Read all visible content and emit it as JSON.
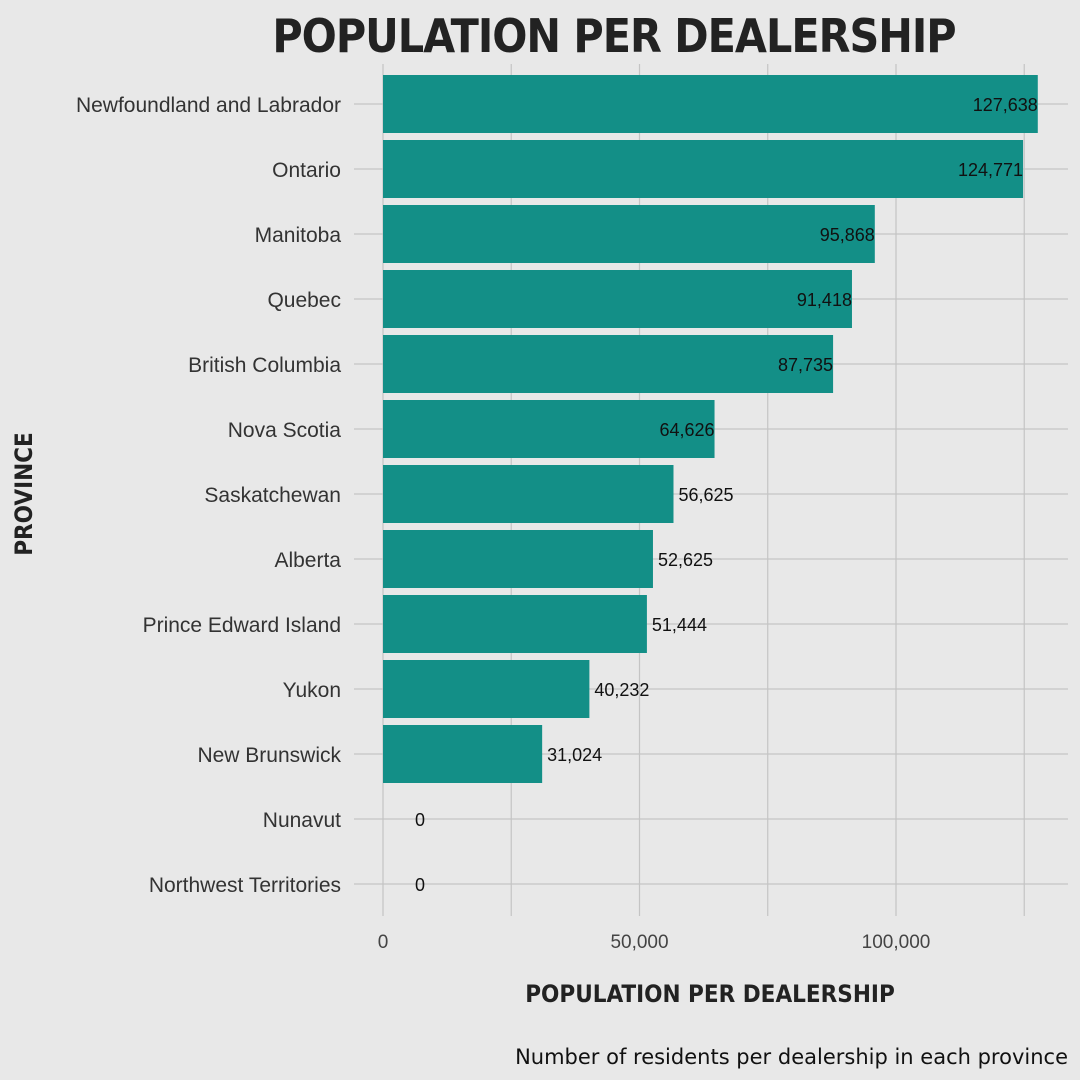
{
  "chart_data": {
    "type": "bar",
    "orientation": "horizontal",
    "title": "POPULATION PER DEALERSHIP",
    "xlabel": "POPULATION PER DEALERSHIP",
    "ylabel": "PROVINCE",
    "caption": "Number of residents per dealership in each province",
    "xlim": [
      0,
      130000
    ],
    "x_ticks": [
      {
        "value": 0,
        "label": "0"
      },
      {
        "value": 50000,
        "label": "50,000"
      },
      {
        "value": 100000,
        "label": "100,000"
      }
    ],
    "x_minor_gridlines": [
      25000,
      75000,
      125000
    ],
    "grid": true,
    "bar_color": "#138f87",
    "background": "#e8e8e8",
    "gridline_color": "#c4c4c4",
    "categories": [
      "Newfoundland and Labrador",
      "Ontario",
      "Manitoba",
      "Quebec",
      "British Columbia",
      "Nova Scotia",
      "Saskatchewan",
      "Alberta",
      "Prince Edward Island",
      "Yukon",
      "New Brunswick",
      "Nunavut",
      "Northwest Territories"
    ],
    "values": [
      127638,
      124771,
      95868,
      91418,
      87735,
      64626,
      56625,
      52625,
      51444,
      40232,
      31024,
      0,
      0
    ],
    "value_labels": [
      "127,638",
      "124,771",
      "95,868",
      "91,418",
      "87,735",
      "64,626",
      "56,625",
      "52,625",
      "51,444",
      "40,232",
      "31,024",
      "0",
      "0"
    ]
  }
}
